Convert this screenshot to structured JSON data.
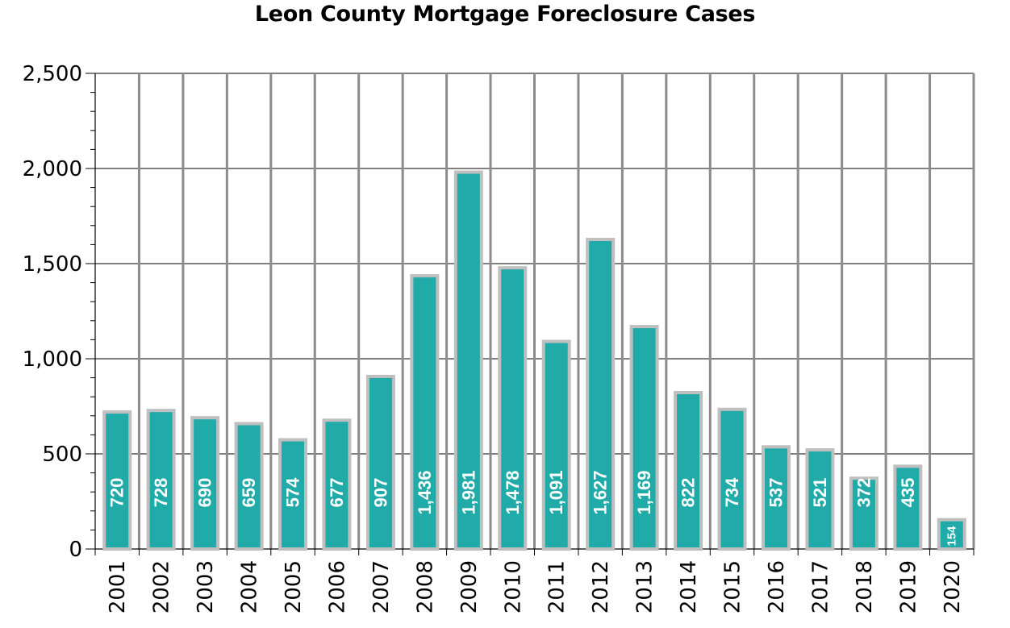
{
  "chart_data": {
    "type": "bar",
    "title": "Leon County Mortgage Foreclosure Cases",
    "xlabel": "",
    "ylabel": "",
    "categories": [
      "2001",
      "2002",
      "2003",
      "2004",
      "2005",
      "2006",
      "2007",
      "2008",
      "2009",
      "2010",
      "2011",
      "2012",
      "2013",
      "2014",
      "2015",
      "2016",
      "2017",
      "2018",
      "2019",
      "2020"
    ],
    "values": [
      720,
      728,
      690,
      659,
      574,
      677,
      907,
      1436,
      1981,
      1478,
      1091,
      1627,
      1169,
      822,
      734,
      537,
      521,
      372,
      435,
      154
    ],
    "data_labels": [
      "720",
      "728",
      "690",
      "659",
      "574",
      "677",
      "907",
      "1,436",
      "1,981",
      "1,478",
      "1,091",
      "1,627",
      "1,169",
      "822",
      "734",
      "537",
      "521",
      "372",
      "435",
      "154"
    ],
    "ylim": [
      0,
      2500
    ],
    "y_ticks": [
      0,
      500,
      1000,
      1500,
      2000,
      2500
    ],
    "y_tick_labels": [
      "0",
      "500",
      "1,000",
      "1,500",
      "2,000",
      "2,500"
    ],
    "grid": true,
    "legend": "none",
    "colors": {
      "bar_fill": "#20aaa8",
      "bar_border": "#bfbfbf",
      "vertical_grid": "#8c8c8c",
      "horizontal_grid": "#000000",
      "label_text": "#ffffff"
    }
  }
}
